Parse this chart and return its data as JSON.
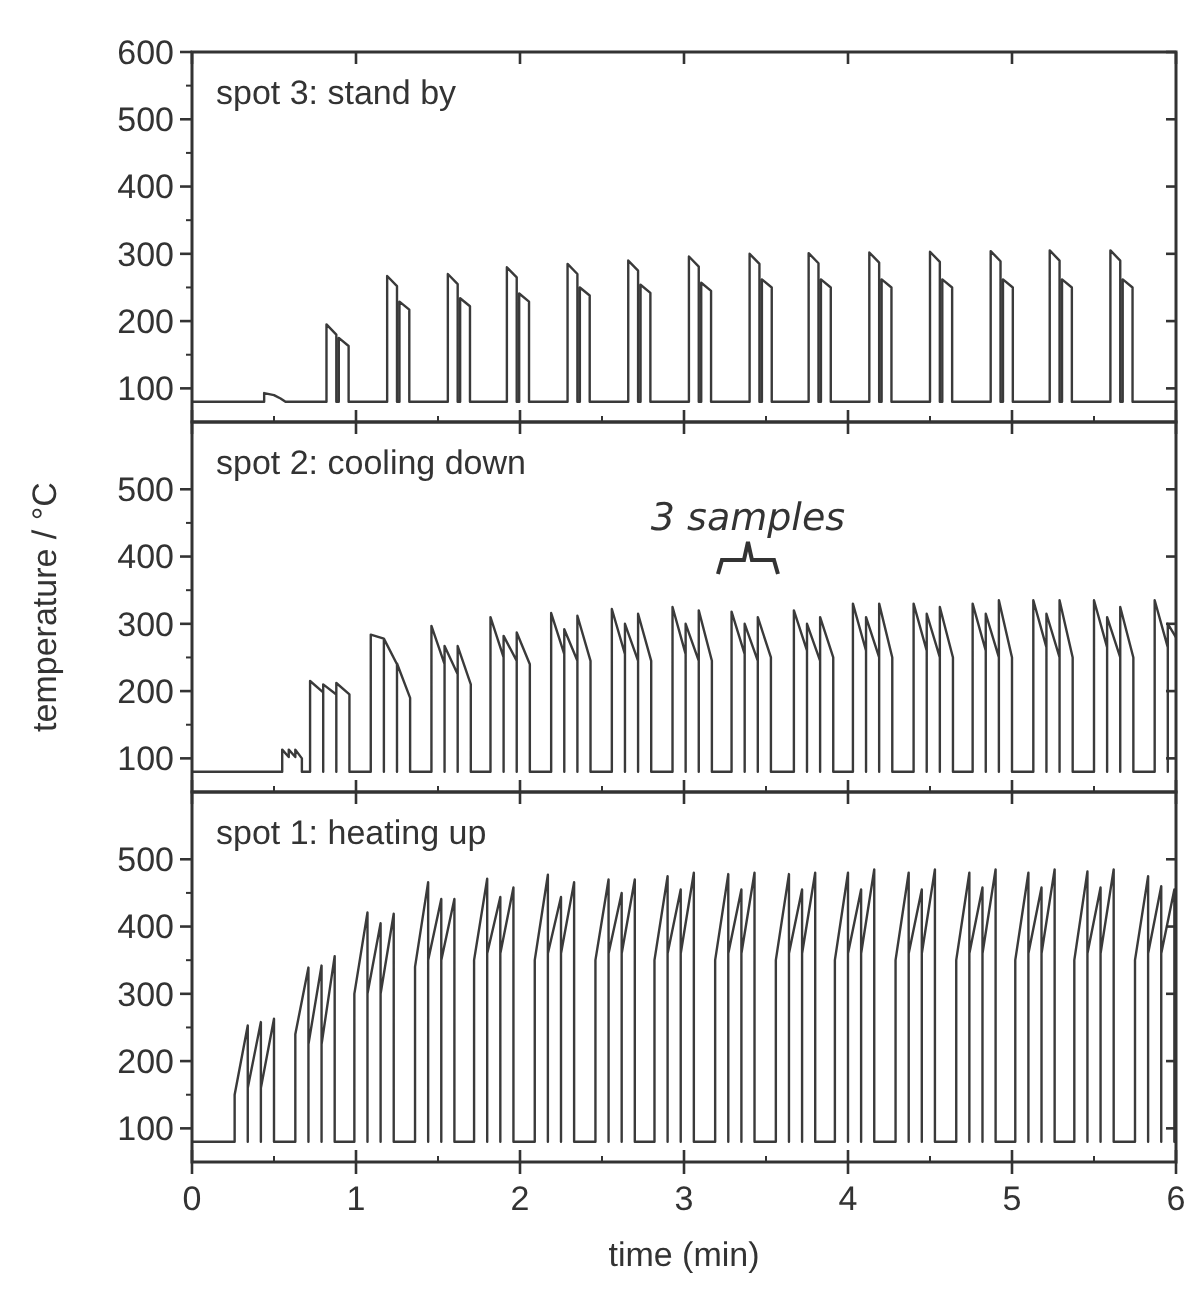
{
  "chart_data": [
    {
      "type": "line",
      "annotations": [
        "spot 3: stand by"
      ],
      "color": "#3a3a3a",
      "xlim": [
        0,
        6
      ],
      "xticks": [
        0,
        1,
        2,
        3,
        4,
        5,
        6
      ],
      "ylim": [
        50,
        600
      ],
      "yticks": [
        100,
        200,
        300,
        400,
        500,
        600
      ],
      "tick_labels": "y",
      "x": [
        0,
        0.44,
        0.44,
        0.5,
        0.54,
        0.57,
        0.82,
        0.82,
        0.88,
        0.88,
        0.895,
        0.895,
        0.955,
        0.955,
        1.19,
        1.19,
        1.25,
        1.25,
        1.265,
        1.265,
        1.325,
        1.325,
        1.56,
        1.56,
        1.62,
        1.62,
        1.635,
        1.635,
        1.695,
        1.695,
        1.92,
        1.92,
        1.98,
        1.98,
        1.995,
        1.995,
        2.055,
        2.055,
        2.29,
        2.29,
        2.35,
        2.35,
        2.365,
        2.365,
        2.425,
        2.425,
        2.66,
        2.66,
        2.72,
        2.72,
        2.735,
        2.735,
        2.795,
        2.795,
        3.03,
        3.03,
        3.09,
        3.09,
        3.105,
        3.105,
        3.165,
        3.165,
        3.4,
        3.4,
        3.46,
        3.46,
        3.475,
        3.475,
        3.535,
        3.535,
        3.76,
        3.76,
        3.82,
        3.82,
        3.835,
        3.835,
        3.895,
        3.895,
        4.13,
        4.13,
        4.19,
        4.19,
        4.205,
        4.205,
        4.265,
        4.265,
        4.5,
        4.5,
        4.56,
        4.56,
        4.575,
        4.575,
        4.635,
        4.635,
        4.87,
        4.87,
        4.93,
        4.93,
        4.945,
        4.945,
        5.005,
        5.005,
        5.23,
        5.23,
        5.29,
        5.29,
        5.305,
        5.305,
        5.365,
        5.365,
        5.6,
        5.6,
        5.66,
        5.66,
        5.675,
        5.675,
        5.735,
        5.735,
        6
      ],
      "values": [
        80,
        80,
        93,
        90,
        85,
        80,
        80,
        195,
        180,
        80,
        80,
        175,
        163,
        80,
        80,
        267,
        252,
        80,
        80,
        229,
        217,
        80,
        80,
        270,
        255,
        80,
        80,
        234,
        222,
        80,
        80,
        280,
        265,
        80,
        80,
        241,
        229,
        80,
        80,
        285,
        270,
        80,
        80,
        250,
        238,
        80,
        80,
        290,
        275,
        80,
        80,
        254,
        242,
        80,
        80,
        296,
        281,
        80,
        80,
        257,
        245,
        80,
        80,
        300,
        285,
        80,
        80,
        262,
        250,
        80,
        80,
        301,
        286,
        80,
        80,
        262,
        250,
        80,
        80,
        302,
        287,
        80,
        80,
        262,
        250,
        80,
        80,
        303,
        288,
        80,
        80,
        262,
        250,
        80,
        80,
        304,
        289,
        80,
        80,
        262,
        250,
        80,
        80,
        305,
        290,
        80,
        80,
        262,
        250,
        80,
        80,
        305,
        290,
        80,
        80,
        262,
        250,
        80,
        80
      ]
    },
    {
      "type": "line",
      "ylabel": "temperature / °C",
      "annotations": [
        "spot 2: cooling down",
        "3 samples"
      ],
      "color": "#3a3a3a",
      "xlim": [
        0,
        6
      ],
      "xticks": [
        0,
        1,
        2,
        3,
        4,
        5,
        6
      ],
      "ylim": [
        50,
        600
      ],
      "yticks": [
        100,
        200,
        300,
        400,
        500
      ],
      "tick_labels": "y",
      "x": [
        0,
        0.55,
        0.55,
        0.59,
        0.59,
        0.63,
        0.63,
        0.67,
        0.67,
        0.72,
        0.72,
        0.8,
        0.8,
        0.8,
        0.88,
        0.88,
        0.88,
        0.96,
        0.96,
        1.09,
        1.09,
        1.17,
        1.17,
        1.17,
        1.25,
        1.25,
        1.25,
        1.33,
        1.33,
        1.46,
        1.46,
        1.54,
        1.54,
        1.54,
        1.62,
        1.62,
        1.62,
        1.7,
        1.7,
        1.82,
        1.82,
        1.9,
        1.9,
        1.9,
        1.98,
        1.98,
        1.98,
        2.06,
        2.06,
        2.19,
        2.19,
        2.27,
        2.27,
        2.27,
        2.35,
        2.35,
        2.35,
        2.43,
        2.43,
        2.56,
        2.56,
        2.64,
        2.64,
        2.64,
        2.72,
        2.72,
        2.72,
        2.8,
        2.8,
        2.93,
        2.93,
        3.01,
        3.01,
        3.01,
        3.09,
        3.09,
        3.09,
        3.17,
        3.17,
        3.29,
        3.29,
        3.37,
        3.37,
        3.37,
        3.45,
        3.45,
        3.45,
        3.53,
        3.53,
        3.67,
        3.67,
        3.75,
        3.75,
        3.75,
        3.83,
        3.83,
        3.83,
        3.91,
        3.91,
        4.03,
        4.03,
        4.11,
        4.11,
        4.11,
        4.19,
        4.19,
        4.19,
        4.27,
        4.27,
        4.4,
        4.4,
        4.48,
        4.48,
        4.48,
        4.56,
        4.56,
        4.56,
        4.64,
        4.64,
        4.76,
        4.76,
        4.84,
        4.84,
        4.84,
        4.92,
        4.92,
        4.92,
        5,
        5,
        5.13,
        5.13,
        5.21,
        5.21,
        5.21,
        5.29,
        5.29,
        5.29,
        5.37,
        5.37,
        5.5,
        5.5,
        5.58,
        5.58,
        5.58,
        5.66,
        5.66,
        5.66,
        5.74,
        5.74,
        5.87,
        5.87,
        5.95,
        5.95,
        5.95,
        6
      ],
      "values": [
        80,
        80,
        113,
        102,
        113,
        102,
        113,
        100,
        80,
        80,
        215,
        198,
        80,
        210,
        195,
        80,
        212,
        195,
        80,
        80,
        284,
        278,
        80,
        278,
        240,
        80,
        241,
        190,
        80,
        80,
        297,
        240,
        80,
        267,
        225,
        80,
        267,
        210,
        80,
        80,
        310,
        250,
        80,
        282,
        245,
        80,
        287,
        240,
        80,
        80,
        316,
        255,
        80,
        292,
        245,
        80,
        312,
        245,
        80,
        80,
        322,
        255,
        80,
        300,
        245,
        80,
        315,
        245,
        80,
        80,
        325,
        255,
        80,
        300,
        245,
        80,
        320,
        245,
        80,
        80,
        318,
        255,
        80,
        300,
        245,
        80,
        310,
        250,
        80,
        80,
        320,
        260,
        80,
        300,
        245,
        80,
        310,
        250,
        80,
        80,
        330,
        260,
        80,
        310,
        250,
        80,
        330,
        250,
        80,
        80,
        330,
        260,
        80,
        315,
        250,
        80,
        325,
        250,
        80,
        80,
        330,
        260,
        80,
        315,
        250,
        80,
        335,
        250,
        80,
        80,
        335,
        265,
        80,
        315,
        250,
        80,
        335,
        250,
        80,
        80,
        335,
        265,
        80,
        310,
        250,
        80,
        325,
        250,
        80,
        80,
        335,
        265,
        80,
        300,
        280
      ]
    },
    {
      "type": "line",
      "xlabel": "time (min)",
      "annotations": [
        "spot 1: heating up"
      ],
      "color": "#3a3a3a",
      "xlim": [
        0,
        6
      ],
      "xticks": [
        0,
        1,
        2,
        3,
        4,
        5,
        6
      ],
      "ylim": [
        50,
        600
      ],
      "yticks": [
        100,
        200,
        300,
        400,
        500
      ],
      "x": [
        0,
        0.26,
        0.26,
        0.34,
        0.34,
        0.34,
        0.42,
        0.42,
        0.42,
        0.5,
        0.5,
        0.63,
        0.63,
        0.71,
        0.71,
        0.71,
        0.79,
        0.79,
        0.79,
        0.87,
        0.87,
        0.99,
        0.99,
        1.07,
        1.07,
        1.07,
        1.15,
        1.15,
        1.15,
        1.23,
        1.23,
        1.36,
        1.36,
        1.44,
        1.44,
        1.44,
        1.52,
        1.52,
        1.52,
        1.6,
        1.6,
        1.72,
        1.72,
        1.8,
        1.8,
        1.8,
        1.88,
        1.88,
        1.88,
        1.96,
        1.96,
        2.09,
        2.09,
        2.17,
        2.17,
        2.17,
        2.25,
        2.25,
        2.25,
        2.33,
        2.33,
        2.46,
        2.46,
        2.54,
        2.54,
        2.54,
        2.62,
        2.62,
        2.62,
        2.7,
        2.7,
        2.82,
        2.82,
        2.9,
        2.9,
        2.9,
        2.98,
        2.98,
        2.98,
        3.06,
        3.06,
        3.19,
        3.19,
        3.27,
        3.27,
        3.27,
        3.35,
        3.35,
        3.35,
        3.43,
        3.43,
        3.56,
        3.56,
        3.64,
        3.64,
        3.64,
        3.72,
        3.72,
        3.72,
        3.8,
        3.8,
        3.92,
        3.92,
        4,
        4,
        4,
        4.08,
        4.08,
        4.08,
        4.16,
        4.16,
        4.29,
        4.29,
        4.37,
        4.37,
        4.37,
        4.45,
        4.45,
        4.45,
        4.53,
        4.53,
        4.66,
        4.66,
        4.74,
        4.74,
        4.74,
        4.82,
        4.82,
        4.82,
        4.9,
        4.9,
        5.02,
        5.02,
        5.1,
        5.1,
        5.1,
        5.18,
        5.18,
        5.18,
        5.26,
        5.26,
        5.38,
        5.38,
        5.46,
        5.46,
        5.46,
        5.54,
        5.54,
        5.54,
        5.62,
        5.62,
        5.75,
        5.75,
        5.83,
        5.83,
        5.83,
        5.91,
        5.91,
        5.91,
        5.99,
        5.99,
        6
      ],
      "values": [
        80,
        80,
        150,
        253,
        80,
        160,
        258,
        80,
        160,
        263,
        80,
        80,
        240,
        339,
        80,
        225,
        342,
        80,
        225,
        356,
        80,
        80,
        300,
        421,
        80,
        300,
        405,
        80,
        300,
        419,
        80,
        80,
        340,
        466,
        80,
        350,
        441,
        80,
        350,
        441,
        80,
        80,
        350,
        471,
        80,
        360,
        444,
        80,
        360,
        458,
        80,
        80,
        350,
        477,
        80,
        360,
        444,
        80,
        360,
        466,
        80,
        80,
        350,
        470,
        80,
        360,
        450,
        80,
        360,
        470,
        80,
        80,
        350,
        475,
        80,
        360,
        455,
        80,
        360,
        480,
        80,
        80,
        350,
        478,
        80,
        360,
        455,
        80,
        360,
        480,
        80,
        80,
        350,
        478,
        80,
        360,
        455,
        80,
        360,
        480,
        80,
        80,
        350,
        480,
        80,
        360,
        455,
        80,
        360,
        485,
        80,
        80,
        350,
        480,
        80,
        360,
        455,
        80,
        360,
        485,
        80,
        80,
        350,
        480,
        80,
        360,
        458,
        80,
        360,
        485,
        80,
        80,
        350,
        480,
        80,
        360,
        458,
        80,
        360,
        485,
        80,
        80,
        350,
        482,
        80,
        360,
        458,
        80,
        360,
        485,
        80,
        80,
        350,
        475,
        80,
        360,
        460,
        80,
        360,
        455,
        80,
        80
      ]
    }
  ]
}
